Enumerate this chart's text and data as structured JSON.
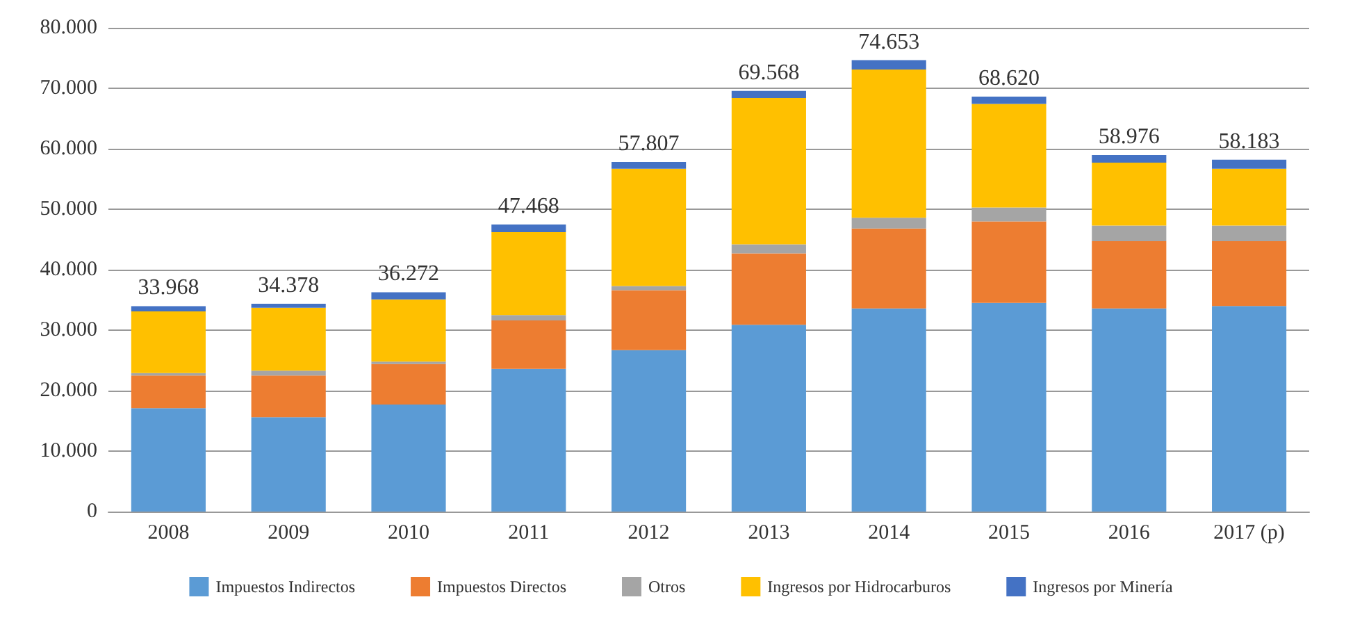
{
  "chart_data": {
    "type": "bar",
    "stacked": true,
    "categories": [
      "2008",
      "2009",
      "2010",
      "2011",
      "2012",
      "2013",
      "2014",
      "2015",
      "2016",
      "2017 (p)"
    ],
    "series": [
      {
        "name": "Impuestos Indirectos",
        "color": "#5b9bd5",
        "values": [
          17100,
          15600,
          17700,
          23600,
          26700,
          30900,
          33600,
          34500,
          33600,
          34000
        ]
      },
      {
        "name": "Impuestos Directos",
        "color": "#ed7d31",
        "values": [
          5400,
          6900,
          6700,
          8000,
          9900,
          11800,
          13200,
          13500,
          11100,
          10700
        ]
      },
      {
        "name": "Otros",
        "color": "#a5a5a5",
        "values": [
          400,
          800,
          400,
          900,
          700,
          1500,
          1800,
          2300,
          2600,
          2600
        ]
      },
      {
        "name": "Ingresos por Hidrocarburos",
        "color": "#ffc000",
        "values": [
          10200,
          10400,
          10300,
          13700,
          19400,
          24200,
          24500,
          17100,
          10400,
          9400
        ]
      },
      {
        "name": "Ingresos por Minería",
        "color": "#4472c4",
        "values": [
          868,
          678,
          1172,
          1268,
          1107,
          1168,
          1553,
          1220,
          1276,
          1483
        ]
      }
    ],
    "totals": [
      "33.968",
      "34.378",
      "36.272",
      "47.468",
      "57.807",
      "69.568",
      "74.653",
      "68.620",
      "58.976",
      "58.183"
    ],
    "ylim": [
      0,
      80000
    ],
    "yticks": [
      {
        "value": 0,
        "label": "0"
      },
      {
        "value": 10000,
        "label": "10.000"
      },
      {
        "value": 20000,
        "label": "20.000"
      },
      {
        "value": 30000,
        "label": "30.000"
      },
      {
        "value": 40000,
        "label": "40.000"
      },
      {
        "value": 50000,
        "label": "50.000"
      },
      {
        "value": 60000,
        "label": "60.000"
      },
      {
        "value": 70000,
        "label": "70.000"
      },
      {
        "value": 80000,
        "label": "80.000"
      }
    ],
    "grid": "y",
    "legend": "bottom"
  }
}
